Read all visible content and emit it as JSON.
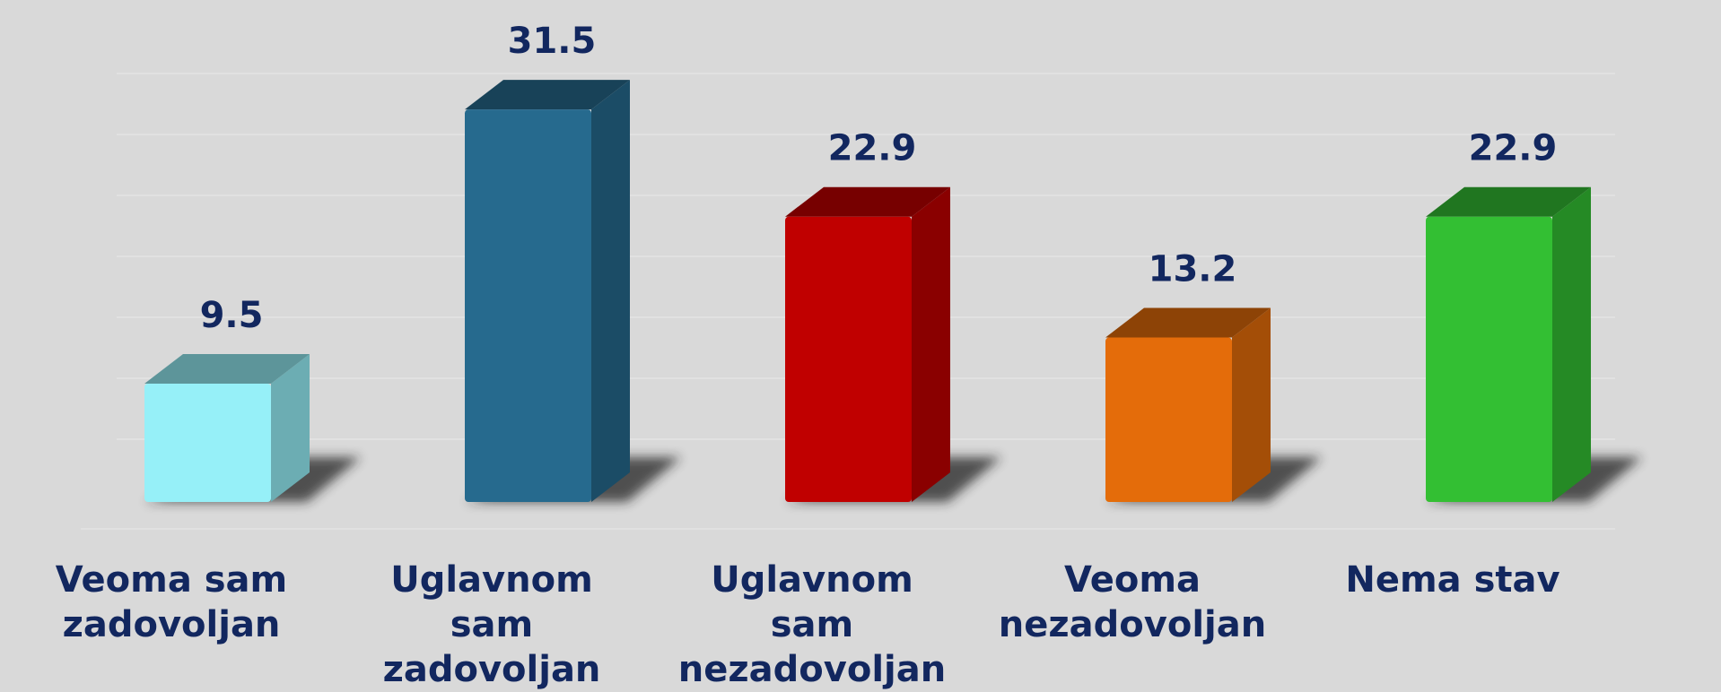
{
  "chart_data": {
    "type": "bar3d",
    "categories": [
      "Veoma sam zadovoljan",
      "Uglavnom sam zadovoljan",
      "Uglavnom sam nezadovoljan",
      "Veoma nezadovoljan",
      "Nema stav"
    ],
    "values": [
      9.5,
      31.5,
      22.9,
      13.2,
      22.9
    ],
    "colors": [
      "#96f0f8",
      "#266a8e",
      "#c00000",
      "#e46c0a",
      "#33bf33"
    ],
    "ylim": [
      0,
      40
    ]
  }
}
